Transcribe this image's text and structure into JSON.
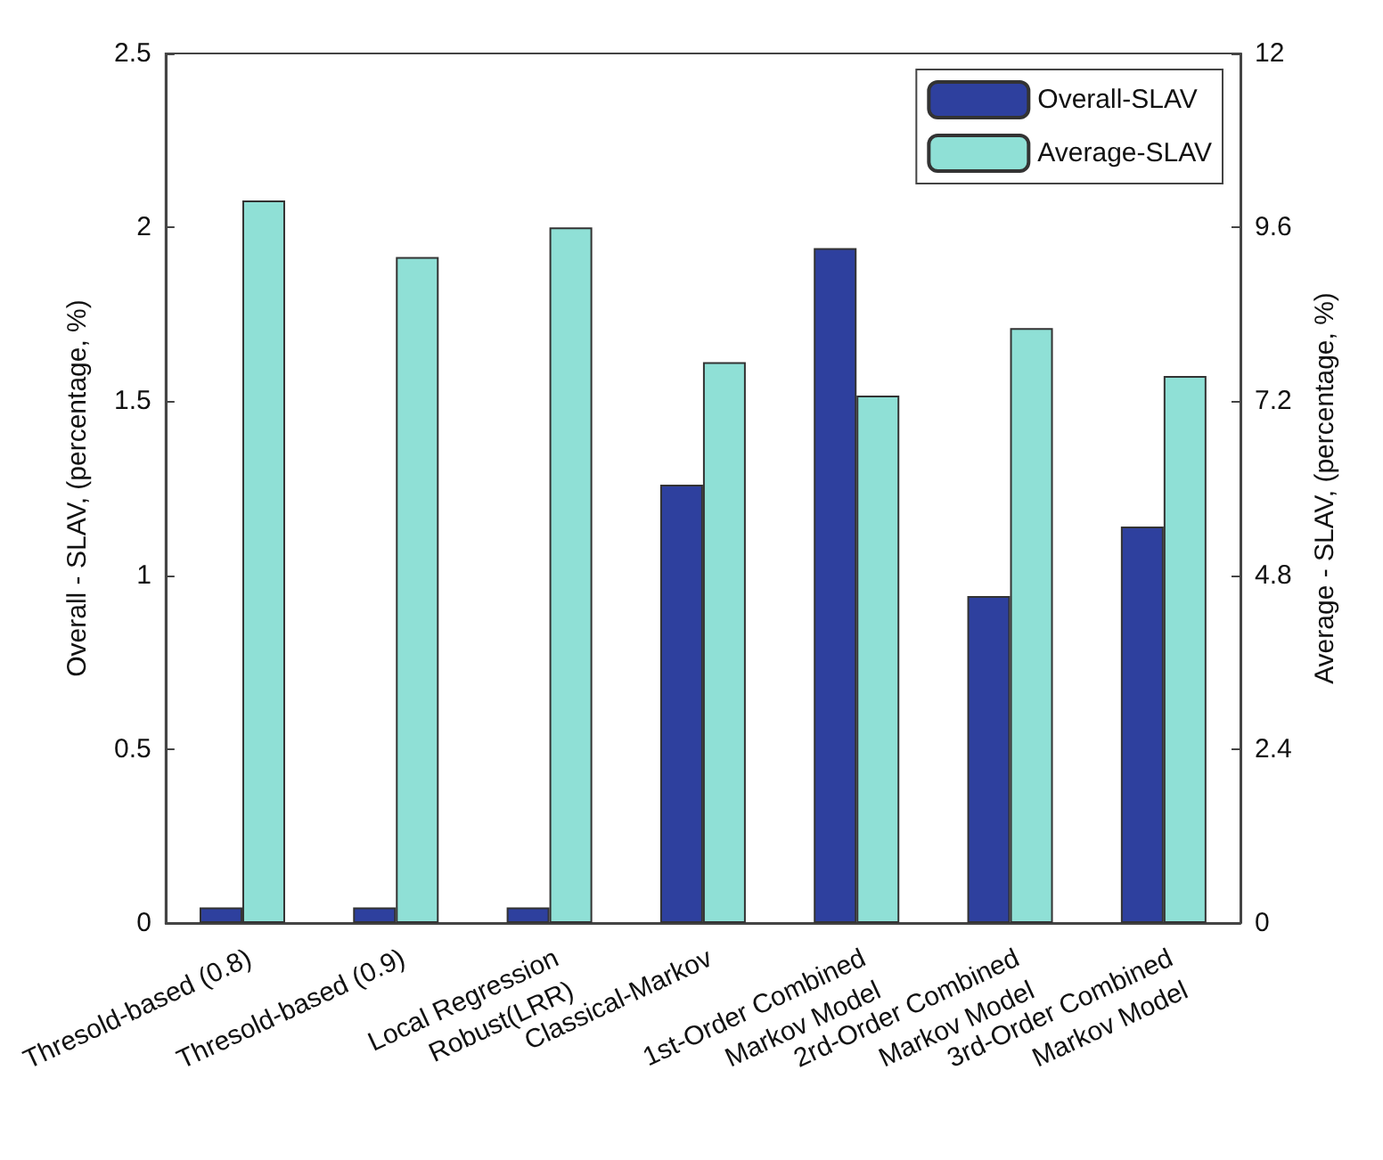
{
  "chart_data": {
    "type": "bar",
    "ylabel": "Overall - SLAV, (percentage, %)",
    "y2label": "Average - SLAV, (percentage, %)",
    "categories": [
      "Thresold-based (0.8)",
      "Thresold-based (0.9)",
      "Local Regression\nRobust(LRR)",
      "Classical-Markov",
      "1st-Order Combined\nMarkov Model",
      "2rd-Order Combined\nMarkov Model",
      "3rd-Order Combined\nMarkov Model"
    ],
    "series": [
      {
        "name": "Overall-SLAV",
        "color": "#2e409e",
        "values": [
          0.045,
          0.045,
          0.045,
          1.26,
          1.94,
          0.94,
          1.14
        ]
      },
      {
        "name": "Average-SLAV",
        "color": "#8fe0d6",
        "axis": "y2",
        "values": [
          9.97,
          9.19,
          9.6,
          7.74,
          7.28,
          8.21,
          7.55
        ]
      }
    ],
    "ylim": [
      0,
      2.5
    ],
    "yticks": [
      0,
      0.5,
      1,
      1.5,
      2,
      2.5
    ],
    "y2lim": [
      0,
      12
    ],
    "y2ticks": [
      0,
      2.4,
      4.8,
      7.2,
      9.6,
      12
    ],
    "grid": false,
    "legend": "top right"
  }
}
